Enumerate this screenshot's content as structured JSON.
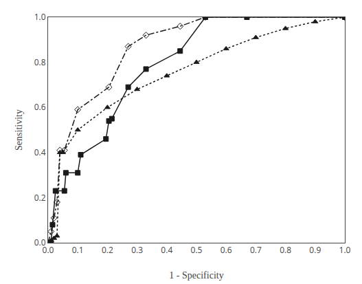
{
  "chart_data": {
    "type": "line",
    "xlabel": "1 - Specificity",
    "ylabel": "Sensitivity",
    "xlim": [
      0,
      1.0
    ],
    "ylim": [
      0,
      1.0
    ],
    "xticks": [
      {
        "value": 0.0,
        "label": "0.0"
      },
      0.1,
      0.2,
      0.3,
      0.4,
      0.5,
      0.6,
      0.7,
      0.8,
      0.9,
      {
        "value": 1.0,
        "label": "1.0"
      }
    ],
    "yticks": [
      {
        "value": 0.0,
        "label": "0.0"
      },
      0.2,
      0.4,
      0.6,
      0.8,
      {
        "value": 1.0,
        "label": "1.0"
      }
    ],
    "grid": false,
    "series": [
      {
        "color": "#1a1a1a",
        "marker": "square",
        "line_style": "solid",
        "x": [
          0.0,
          0.01,
          0.015,
          0.025,
          0.055,
          0.06,
          0.1,
          0.11,
          0.195,
          0.205,
          0.215,
          0.27,
          0.33,
          0.445,
          0.53,
          0.67,
          1.0
        ],
        "values": [
          0.0,
          0.0,
          0.08,
          0.23,
          0.23,
          0.31,
          0.31,
          0.39,
          0.46,
          0.54,
          0.55,
          0.69,
          0.77,
          0.85,
          1.0,
          1.0,
          1.0
        ]
      },
      {
        "color": "#1a1a1a",
        "marker": "diamond-open",
        "line_style": "dashdot",
        "x": [
          0.0,
          0.01,
          0.02,
          0.03,
          0.04,
          0.055,
          0.1,
          0.205,
          0.27,
          0.33,
          0.445,
          0.53,
          1.0
        ],
        "values": [
          0.0,
          0.05,
          0.11,
          0.18,
          0.41,
          0.41,
          0.59,
          0.69,
          0.87,
          0.92,
          0.96,
          1.0,
          1.0
        ]
      },
      {
        "color": "#1a1a1a",
        "marker": "triangle-up",
        "line_style": "dot",
        "x": [
          0.0,
          0.01,
          0.02,
          0.03,
          0.04,
          0.05,
          0.1,
          0.2,
          0.3,
          0.4,
          0.5,
          0.6,
          0.7,
          0.8,
          0.9,
          1.0
        ],
        "values": [
          0.0,
          0.01,
          0.02,
          0.03,
          0.4,
          0.4,
          0.5,
          0.6,
          0.68,
          0.74,
          0.8,
          0.86,
          0.91,
          0.95,
          0.98,
          1.0
        ]
      }
    ]
  }
}
